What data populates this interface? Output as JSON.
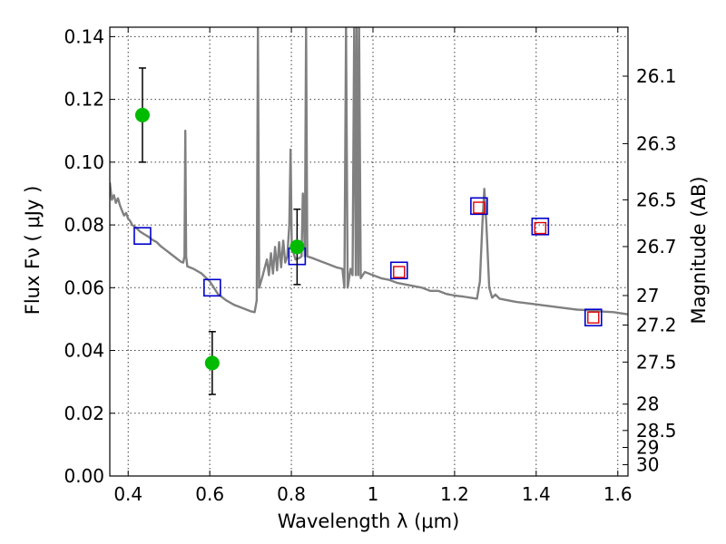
{
  "chart_data": {
    "type": "scatter",
    "xlabel": "Wavelength  λ (μm)",
    "ylabel": "Flux  Fν  ( μJy )",
    "y2label": "Magnitude (AB)",
    "xlim": [
      0.355,
      1.625
    ],
    "ylim": [
      0.0,
      0.143
    ],
    "grid": true,
    "x_ticks": [
      {
        "value": 0.4,
        "label": "0.4"
      },
      {
        "value": 0.6,
        "label": "0.6"
      },
      {
        "value": 0.8,
        "label": "0.8"
      },
      {
        "value": 1.0,
        "label": "1"
      },
      {
        "value": 1.2,
        "label": "1.2"
      },
      {
        "value": 1.4,
        "label": "1.4"
      },
      {
        "value": 1.6,
        "label": "1.6"
      }
    ],
    "y_ticks": [
      {
        "value": 0.0,
        "label": "0.00"
      },
      {
        "value": 0.02,
        "label": "0.02"
      },
      {
        "value": 0.04,
        "label": "0.04"
      },
      {
        "value": 0.06,
        "label": "0.06"
      },
      {
        "value": 0.08,
        "label": "0.08"
      },
      {
        "value": 0.1,
        "label": "0.10"
      },
      {
        "value": 0.12,
        "label": "0.12"
      },
      {
        "value": 0.14,
        "label": "0.14"
      }
    ],
    "y2_ticks": [
      {
        "flux": 0.1274,
        "label": "26.1"
      },
      {
        "flux": 0.1059,
        "label": "26.3"
      },
      {
        "flux": 0.088,
        "label": "26.5"
      },
      {
        "flux": 0.0731,
        "label": "26.7"
      },
      {
        "flux": 0.0575,
        "label": "27"
      },
      {
        "flux": 0.0481,
        "label": "27.2"
      },
      {
        "flux": 0.0363,
        "label": "27.5"
      },
      {
        "flux": 0.0229,
        "label": "28"
      },
      {
        "flux": 0.0145,
        "label": "28.5"
      },
      {
        "flux": 0.0091,
        "label": "29"
      },
      {
        "flux": 0.0036,
        "label": "30"
      }
    ],
    "observed_points": {
      "color": "#00bb00",
      "points": [
        {
          "x": 0.435,
          "y": 0.115,
          "err_low": 0.1,
          "err_high": 0.13
        },
        {
          "x": 0.606,
          "y": 0.036,
          "err_low": 0.026,
          "err_high": 0.046
        },
        {
          "x": 0.814,
          "y": 0.073,
          "err_low": 0.061,
          "err_high": 0.085
        }
      ]
    },
    "model_bands_blue": {
      "color": "#0000cc",
      "points": [
        {
          "x": 0.435,
          "y": 0.0765
        },
        {
          "x": 0.606,
          "y": 0.06
        },
        {
          "x": 0.814,
          "y": 0.07
        },
        {
          "x": 1.064,
          "y": 0.0655
        },
        {
          "x": 1.26,
          "y": 0.086
        },
        {
          "x": 1.41,
          "y": 0.0795
        },
        {
          "x": 1.54,
          "y": 0.0505
        }
      ]
    },
    "model_bands_red": {
      "color": "#dd0000",
      "points": [
        {
          "x": 1.064,
          "y": 0.065
        },
        {
          "x": 1.26,
          "y": 0.0855
        },
        {
          "x": 1.41,
          "y": 0.079
        },
        {
          "x": 1.54,
          "y": 0.0505
        }
      ]
    },
    "model_spectrum": {
      "color": "#808080",
      "points": [
        [
          0.355,
          0.0935
        ],
        [
          0.36,
          0.088
        ],
        [
          0.365,
          0.0895
        ],
        [
          0.37,
          0.087
        ],
        [
          0.375,
          0.0885
        ],
        [
          0.38,
          0.0862
        ],
        [
          0.385,
          0.0845
        ],
        [
          0.39,
          0.083
        ],
        [
          0.395,
          0.0838
        ],
        [
          0.4,
          0.082
        ],
        [
          0.405,
          0.0812
        ],
        [
          0.41,
          0.08
        ],
        [
          0.42,
          0.079
        ],
        [
          0.43,
          0.0778
        ],
        [
          0.44,
          0.077
        ],
        [
          0.45,
          0.0762
        ],
        [
          0.46,
          0.0752
        ],
        [
          0.47,
          0.0745
        ],
        [
          0.48,
          0.0732
        ],
        [
          0.49,
          0.0722
        ],
        [
          0.5,
          0.0712
        ],
        [
          0.51,
          0.0702
        ],
        [
          0.52,
          0.0692
        ],
        [
          0.53,
          0.0682
        ],
        [
          0.535,
          0.068
        ],
        [
          0.538,
          0.07
        ],
        [
          0.54,
          0.11
        ],
        [
          0.542,
          0.07
        ],
        [
          0.545,
          0.0668
        ],
        [
          0.56,
          0.066
        ],
        [
          0.58,
          0.0645
        ],
        [
          0.6,
          0.062
        ],
        [
          0.62,
          0.058
        ],
        [
          0.64,
          0.056
        ],
        [
          0.66,
          0.0545
        ],
        [
          0.68,
          0.0535
        ],
        [
          0.7,
          0.0525
        ],
        [
          0.71,
          0.0522
        ],
        [
          0.715,
          0.056
        ],
        [
          0.718,
          0.143
        ],
        [
          0.721,
          0.06
        ],
        [
          0.73,
          0.064
        ],
        [
          0.74,
          0.069
        ],
        [
          0.745,
          0.064
        ],
        [
          0.75,
          0.071
        ],
        [
          0.755,
          0.0645
        ],
        [
          0.76,
          0.073
        ],
        [
          0.765,
          0.0655
        ],
        [
          0.77,
          0.0745
        ],
        [
          0.775,
          0.0665
        ],
        [
          0.78,
          0.075
        ],
        [
          0.785,
          0.068
        ],
        [
          0.79,
          0.07
        ],
        [
          0.795,
          0.08
        ],
        [
          0.798,
          0.104
        ],
        [
          0.801,
          0.073
        ],
        [
          0.81,
          0.069
        ],
        [
          0.82,
          0.0695
        ],
        [
          0.825,
          0.07
        ],
        [
          0.828,
          0.09
        ],
        [
          0.83,
          0.087
        ],
        [
          0.833,
          0.07
        ],
        [
          0.836,
          0.143
        ],
        [
          0.839,
          0.07
        ],
        [
          0.85,
          0.0695
        ],
        [
          0.87,
          0.0685
        ],
        [
          0.89,
          0.0675
        ],
        [
          0.91,
          0.0665
        ],
        [
          0.925,
          0.066
        ],
        [
          0.93,
          0.06
        ],
        [
          0.934,
          0.143
        ],
        [
          0.938,
          0.06
        ],
        [
          0.945,
          0.066
        ],
        [
          0.95,
          0.064
        ],
        [
          0.954,
          0.143
        ],
        [
          0.958,
          0.064
        ],
        [
          0.96,
          0.143
        ],
        [
          0.964,
          0.064
        ],
        [
          0.966,
          0.143
        ],
        [
          0.97,
          0.063
        ],
        [
          0.98,
          0.065
        ],
        [
          1.0,
          0.064
        ],
        [
          1.02,
          0.063
        ],
        [
          1.04,
          0.0625
        ],
        [
          1.06,
          0.0615
        ],
        [
          1.08,
          0.061
        ],
        [
          1.1,
          0.0605
        ],
        [
          1.12,
          0.06
        ],
        [
          1.14,
          0.059
        ],
        [
          1.16,
          0.059
        ],
        [
          1.18,
          0.058
        ],
        [
          1.2,
          0.0575
        ],
        [
          1.22,
          0.0572
        ],
        [
          1.24,
          0.0568
        ],
        [
          1.255,
          0.0565
        ],
        [
          1.262,
          0.062
        ],
        [
          1.268,
          0.08
        ],
        [
          1.273,
          0.0915
        ],
        [
          1.278,
          0.08
        ],
        [
          1.285,
          0.06
        ],
        [
          1.292,
          0.0568
        ],
        [
          1.3,
          0.0578
        ],
        [
          1.31,
          0.0565
        ],
        [
          1.33,
          0.056
        ],
        [
          1.35,
          0.0555
        ],
        [
          1.38,
          0.055
        ],
        [
          1.41,
          0.0545
        ],
        [
          1.44,
          0.054
        ],
        [
          1.47,
          0.0535
        ],
        [
          1.5,
          0.053
        ],
        [
          1.53,
          0.0528
        ],
        [
          1.56,
          0.0524
        ],
        [
          1.59,
          0.0522
        ],
        [
          1.61,
          0.0518
        ],
        [
          1.625,
          0.0515
        ]
      ]
    }
  }
}
